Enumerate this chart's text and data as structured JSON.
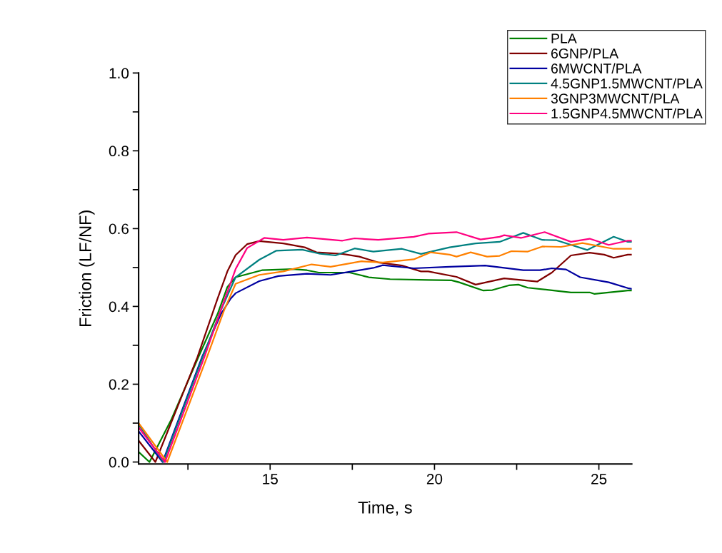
{
  "chart_data": {
    "type": "line",
    "xlabel": "Time, s",
    "ylabel": "Friction (LF/NF)",
    "xlim": [
      11,
      26
    ],
    "ylim": [
      -0.005,
      1.0
    ],
    "xticks": [
      {
        "value": 12.5,
        "label": null
      },
      15,
      {
        "value": 17.5,
        "label": null
      },
      20,
      {
        "value": 22.5,
        "label": null
      },
      25
    ],
    "yticks": [
      {
        "value": 0,
        "label": "0.0"
      },
      {
        "value": 0.1,
        "label": null
      },
      {
        "value": 0.2,
        "label": "0.2"
      },
      {
        "value": 0.3,
        "label": null
      },
      {
        "value": 0.4,
        "label": "0.4"
      },
      {
        "value": 0.5,
        "label": null
      },
      {
        "value": 0.6,
        "label": "0.6"
      },
      {
        "value": 0.7,
        "label": null
      },
      {
        "value": 0.8,
        "label": "0.8"
      },
      {
        "value": 0.9,
        "label": null
      },
      {
        "value": 1.0,
        "label": "1.0"
      }
    ],
    "grid": false,
    "legend": "top right",
    "marker": "none",
    "line_style": "solid",
    "series": [
      {
        "name": "PLA",
        "color": "#008000",
        "x": [
          11.0,
          11.33,
          12.0,
          12.82,
          13.4,
          13.7,
          13.95,
          14.75,
          15.69,
          16.12,
          16.48,
          17.42,
          18.0,
          18.65,
          19.81,
          20.52,
          20.75,
          21.47,
          21.76,
          22.26,
          22.55,
          22.84,
          24.15,
          24.72,
          24.87,
          25.88,
          26.0
        ],
        "values": [
          0.026,
          0.0,
          0.11,
          0.27,
          0.38,
          0.45,
          0.475,
          0.493,
          0.496,
          0.493,
          0.487,
          0.487,
          0.475,
          0.47,
          0.468,
          0.467,
          0.462,
          0.441,
          0.442,
          0.454,
          0.456,
          0.448,
          0.436,
          0.436,
          0.432,
          0.441,
          0.441
        ]
      },
      {
        "name": "6GNP/PLA",
        "color": "#800000",
        "x": [
          11.0,
          11.51,
          12.79,
          13.4,
          13.7,
          13.95,
          14.3,
          14.67,
          15.4,
          16.05,
          16.41,
          17.2,
          17.71,
          18.29,
          19.01,
          19.59,
          19.81,
          20.67,
          21.25,
          22.12,
          23.13,
          23.57,
          24.15,
          24.72,
          25.16,
          25.45,
          25.88,
          26.0
        ],
        "values": [
          0.055,
          0.0,
          0.27,
          0.42,
          0.49,
          0.532,
          0.56,
          0.568,
          0.562,
          0.552,
          0.539,
          0.535,
          0.528,
          0.513,
          0.505,
          0.49,
          0.49,
          0.476,
          0.456,
          0.472,
          0.464,
          0.487,
          0.531,
          0.538,
          0.533,
          0.525,
          0.533,
          0.533
        ]
      },
      {
        "name": "6MWCNT/PLA",
        "color": "#0000a0",
        "x": [
          11.0,
          11.73,
          12.93,
          13.5,
          13.8,
          13.95,
          14.67,
          15.25,
          16.12,
          16.84,
          17.42,
          18.14,
          18.43,
          19.37,
          20.46,
          21.54,
          22.7,
          23.21,
          23.57,
          24.0,
          24.43,
          25.3,
          25.88,
          26.0
        ],
        "values": [
          0.079,
          0.0,
          0.27,
          0.38,
          0.42,
          0.434,
          0.465,
          0.478,
          0.484,
          0.481,
          0.489,
          0.499,
          0.506,
          0.498,
          0.502,
          0.505,
          0.493,
          0.493,
          0.498,
          0.495,
          0.475,
          0.462,
          0.447,
          0.445
        ]
      },
      {
        "name": "4.5GNP1.5MWCNT/PLA",
        "color": "#008080",
        "x": [
          11.0,
          11.75,
          12.95,
          13.5,
          13.95,
          14.67,
          15.18,
          15.97,
          16.48,
          16.99,
          17.57,
          18.14,
          19.01,
          19.59,
          20.46,
          21.25,
          21.98,
          22.7,
          23.28,
          23.71,
          24.65,
          25.45,
          25.88,
          26.0
        ],
        "values": [
          0.097,
          0.0,
          0.27,
          0.39,
          0.475,
          0.52,
          0.543,
          0.546,
          0.536,
          0.531,
          0.549,
          0.541,
          0.548,
          0.535,
          0.552,
          0.562,
          0.566,
          0.589,
          0.571,
          0.57,
          0.545,
          0.579,
          0.566,
          0.566
        ]
      },
      {
        "name": "3GNP3MWCNT/PLA",
        "color": "#ff8000",
        "x": [
          11.0,
          11.87,
          13.08,
          13.6,
          13.95,
          14.67,
          15.4,
          16.26,
          16.84,
          17.78,
          18.43,
          19.37,
          19.88,
          20.46,
          20.67,
          21.1,
          21.6,
          21.98,
          22.34,
          22.84,
          23.28,
          23.85,
          24.5,
          25.45,
          25.88,
          26.0
        ],
        "values": [
          0.1,
          0.0,
          0.27,
          0.39,
          0.458,
          0.481,
          0.49,
          0.508,
          0.502,
          0.516,
          0.513,
          0.521,
          0.539,
          0.533,
          0.528,
          0.539,
          0.528,
          0.53,
          0.542,
          0.541,
          0.554,
          0.553,
          0.563,
          0.548,
          0.548,
          0.548
        ]
      },
      {
        "name": "1.5GNP4.5MWCNT/PLA",
        "color": "#ff0080",
        "x": [
          11.0,
          11.8,
          13.0,
          13.5,
          13.95,
          14.3,
          14.82,
          15.4,
          16.12,
          17.2,
          17.57,
          18.29,
          19.37,
          19.81,
          20.67,
          21.4,
          21.98,
          22.12,
          22.63,
          23.35,
          24.15,
          24.72,
          25.3,
          25.88,
          26.0
        ],
        "values": [
          0.089,
          0.0,
          0.27,
          0.39,
          0.496,
          0.55,
          0.576,
          0.571,
          0.577,
          0.569,
          0.575,
          0.571,
          0.579,
          0.587,
          0.591,
          0.572,
          0.579,
          0.583,
          0.576,
          0.591,
          0.566,
          0.574,
          0.558,
          0.569,
          0.569
        ]
      }
    ]
  }
}
